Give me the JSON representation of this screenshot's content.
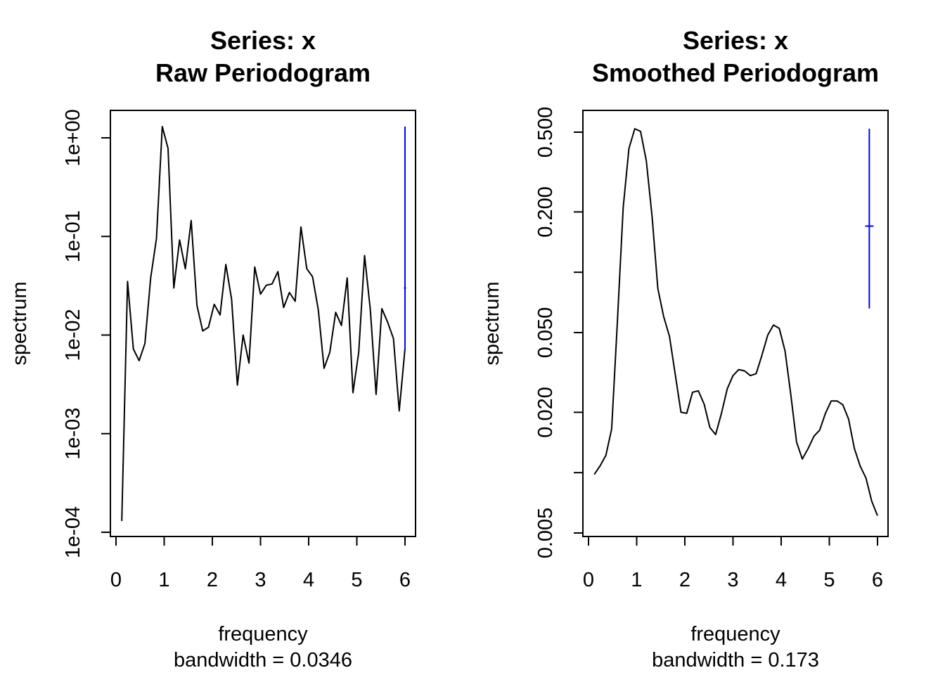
{
  "chart_data": [
    {
      "type": "line",
      "title": "Series: x",
      "subtitle": "Raw Periodogram",
      "xlabel": "frequency",
      "sublabel": "bandwidth = 0.0346",
      "ylabel": "spectrum",
      "y_scale": "log",
      "xlim": [
        0,
        6
      ],
      "ylim": [
        0.0001,
        1.5
      ],
      "x_ticks": [
        0,
        1,
        2,
        3,
        4,
        5,
        6
      ],
      "x_tick_labels": [
        "0",
        "1",
        "2",
        "3",
        "4",
        "5",
        "6"
      ],
      "y_ticks": [
        0.0001,
        0.001,
        0.01,
        0.1,
        1
      ],
      "y_tick_labels": [
        "1e-04",
        "1e-03",
        "1e-02",
        "1e-01",
        "1e+00"
      ],
      "series": [
        {
          "color": "#000000",
          "x": [
            0.12,
            0.24,
            0.36,
            0.48,
            0.6,
            0.72,
            0.84,
            0.96,
            1.08,
            1.2,
            1.32,
            1.44,
            1.56,
            1.68,
            1.8,
            1.92,
            2.04,
            2.16,
            2.28,
            2.4,
            2.52,
            2.64,
            2.76,
            2.88,
            3.0,
            3.12,
            3.24,
            3.36,
            3.48,
            3.6,
            3.72,
            3.84,
            3.96,
            4.08,
            4.2,
            4.32,
            4.44,
            4.56,
            4.68,
            4.8,
            4.92,
            5.04,
            5.16,
            5.28,
            5.4,
            5.52,
            5.64,
            5.76,
            5.88,
            6.0
          ],
          "values": [
            0.00013,
            0.035,
            0.0072,
            0.0055,
            0.0082,
            0.038,
            0.095,
            1.3,
            0.78,
            0.03,
            0.092,
            0.047,
            0.145,
            0.02,
            0.011,
            0.012,
            0.0205,
            0.016,
            0.052,
            0.023,
            0.0031,
            0.01,
            0.0052,
            0.049,
            0.026,
            0.032,
            0.033,
            0.044,
            0.019,
            0.027,
            0.022,
            0.125,
            0.047,
            0.039,
            0.018,
            0.0046,
            0.0067,
            0.017,
            0.0125,
            0.038,
            0.0026,
            0.0067,
            0.064,
            0.018,
            0.0025,
            0.0185,
            0.0135,
            0.0092,
            0.0017,
            0.0073
          ]
        }
      ],
      "ci_bar": {
        "x": 6.0,
        "lower": 0.0072,
        "upper": 1.3,
        "center": 0.03,
        "color": "#0000ff"
      }
    },
    {
      "type": "line",
      "title": "Series: x",
      "subtitle": "Smoothed Periodogram",
      "xlabel": "frequency",
      "sublabel": "bandwidth = 0.173",
      "ylabel": "spectrum",
      "y_scale": "log",
      "xlim": [
        0,
        6
      ],
      "ylim": [
        0.005,
        0.55
      ],
      "x_ticks": [
        0,
        1,
        2,
        3,
        4,
        5,
        6
      ],
      "x_tick_labels": [
        "0",
        "1",
        "2",
        "3",
        "4",
        "5",
        "6"
      ],
      "y_ticks": [
        0.005,
        0.01,
        0.02,
        0.05,
        0.1,
        0.2,
        0.5
      ],
      "y_tick_labels": [
        "0.005",
        "",
        "0.020",
        "0.050",
        "",
        "0.200",
        "0.500"
      ],
      "series": [
        {
          "color": "#000000",
          "x": [
            0.12,
            0.24,
            0.36,
            0.48,
            0.6,
            0.72,
            0.84,
            0.96,
            1.08,
            1.2,
            1.32,
            1.44,
            1.56,
            1.68,
            1.8,
            1.92,
            2.04,
            2.16,
            2.28,
            2.4,
            2.52,
            2.64,
            2.76,
            2.88,
            3.0,
            3.12,
            3.24,
            3.36,
            3.48,
            3.6,
            3.72,
            3.84,
            3.96,
            4.08,
            4.2,
            4.32,
            4.44,
            4.56,
            4.68,
            4.8,
            4.92,
            5.04,
            5.16,
            5.28,
            5.4,
            5.52,
            5.64,
            5.76,
            5.88,
            6.0
          ],
          "values": [
            0.0098,
            0.0108,
            0.0122,
            0.0165,
            0.057,
            0.21,
            0.415,
            0.52,
            0.505,
            0.36,
            0.19,
            0.083,
            0.06,
            0.048,
            0.031,
            0.02,
            0.0198,
            0.0252,
            0.0256,
            0.022,
            0.0168,
            0.0155,
            0.0198,
            0.0262,
            0.0305,
            0.0327,
            0.0322,
            0.0305,
            0.0312,
            0.0385,
            0.0485,
            0.0545,
            0.0525,
            0.0405,
            0.0245,
            0.0142,
            0.0117,
            0.0132,
            0.0152,
            0.0163,
            0.0198,
            0.0228,
            0.0228,
            0.0218,
            0.0185,
            0.0132,
            0.0108,
            0.0094,
            0.0072,
            0.0061
          ]
        }
      ],
      "ci_bar": {
        "x": 5.83,
        "lower": 0.066,
        "upper": 0.52,
        "center": 0.17,
        "color": "#0000ff"
      }
    }
  ]
}
